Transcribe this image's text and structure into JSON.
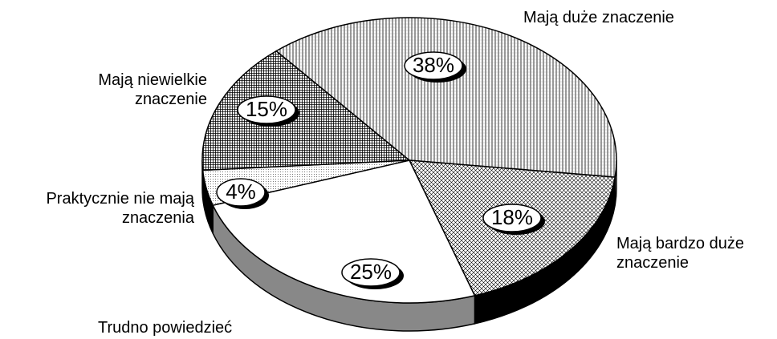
{
  "chart_data": {
    "type": "pie",
    "categories": [
      "Mają duże znaczenie",
      "Mają bardzo duże znaczenie",
      "Trudno powiedzieć",
      "Praktycznie nie mają znaczenia",
      "Mają niewielkie znaczenie"
    ],
    "values": [
      38,
      18,
      25,
      4,
      15
    ],
    "value_labels": [
      "38%",
      "18%",
      "25%",
      "4%",
      "15%"
    ]
  }
}
